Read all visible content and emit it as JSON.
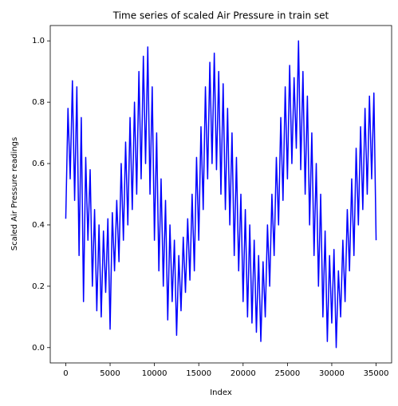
{
  "chart_data": {
    "type": "line",
    "title": "Time series of scaled Air Pressure in train set",
    "xlabel": "Index",
    "ylabel": "Scaled Air Pressure readings",
    "xlim": [
      -1750,
      36750
    ],
    "ylim": [
      -0.05,
      1.05
    ],
    "xticks": [
      0,
      5000,
      10000,
      15000,
      20000,
      25000,
      30000,
      35000
    ],
    "yticks": [
      {
        "value": 0,
        "label": "0.0"
      },
      0.2,
      0.4,
      0.6,
      0.8,
      {
        "value": 1,
        "label": "1.0"
      }
    ],
    "series": [
      {
        "color": "#0000ff",
        "x": [
          0,
          250,
          500,
          750,
          1000,
          1250,
          1500,
          1750,
          2000,
          2250,
          2500,
          2750,
          3000,
          3250,
          3500,
          3750,
          4000,
          4250,
          4500,
          4750,
          5000,
          5250,
          5500,
          5750,
          6000,
          6250,
          6500,
          6750,
          7000,
          7250,
          7500,
          7750,
          8000,
          8250,
          8500,
          8750,
          9000,
          9250,
          9500,
          9750,
          10000,
          10250,
          10500,
          10750,
          11000,
          11250,
          11500,
          11750,
          12000,
          12250,
          12500,
          12750,
          13000,
          13250,
          13500,
          13750,
          14000,
          14250,
          14500,
          14750,
          15000,
          15250,
          15500,
          15750,
          16000,
          16250,
          16500,
          16750,
          17000,
          17250,
          17500,
          17750,
          18000,
          18250,
          18500,
          18750,
          19000,
          19250,
          19500,
          19750,
          20000,
          20250,
          20500,
          20750,
          21000,
          21250,
          21500,
          21750,
          22000,
          22250,
          22500,
          22750,
          23000,
          23250,
          23500,
          23750,
          24000,
          24250,
          24500,
          24750,
          25000,
          25250,
          25500,
          25750,
          26000,
          26250,
          26500,
          26750,
          27000,
          27250,
          27500,
          27750,
          28000,
          28250,
          28500,
          28750,
          29000,
          29250,
          29500,
          29750,
          30000,
          30250,
          30500,
          30750,
          31000,
          31250,
          31500,
          31750,
          32000,
          32250,
          32500,
          32750,
          33000,
          33250,
          33500,
          33750,
          34000,
          34250,
          34500,
          34750,
          35000
        ],
        "values": [
          0.42,
          0.78,
          0.55,
          0.87,
          0.48,
          0.85,
          0.3,
          0.75,
          0.15,
          0.62,
          0.35,
          0.58,
          0.2,
          0.45,
          0.12,
          0.4,
          0.1,
          0.38,
          0.18,
          0.42,
          0.06,
          0.44,
          0.25,
          0.48,
          0.28,
          0.6,
          0.35,
          0.67,
          0.4,
          0.75,
          0.45,
          0.8,
          0.5,
          0.9,
          0.55,
          0.95,
          0.6,
          0.98,
          0.5,
          0.85,
          0.35,
          0.7,
          0.25,
          0.55,
          0.2,
          0.48,
          0.09,
          0.4,
          0.15,
          0.35,
          0.04,
          0.3,
          0.12,
          0.36,
          0.18,
          0.42,
          0.22,
          0.5,
          0.25,
          0.62,
          0.35,
          0.72,
          0.45,
          0.85,
          0.55,
          0.93,
          0.6,
          0.96,
          0.58,
          0.9,
          0.5,
          0.86,
          0.45,
          0.78,
          0.4,
          0.7,
          0.3,
          0.62,
          0.25,
          0.5,
          0.15,
          0.45,
          0.1,
          0.4,
          0.08,
          0.35,
          0.05,
          0.3,
          0.02,
          0.28,
          0.1,
          0.4,
          0.2,
          0.5,
          0.3,
          0.62,
          0.4,
          0.75,
          0.48,
          0.85,
          0.55,
          0.92,
          0.6,
          0.88,
          0.65,
          1.0,
          0.58,
          0.9,
          0.5,
          0.82,
          0.4,
          0.7,
          0.3,
          0.6,
          0.2,
          0.5,
          0.1,
          0.38,
          0.02,
          0.3,
          0.08,
          0.32,
          0.0,
          0.25,
          0.1,
          0.35,
          0.15,
          0.45,
          0.25,
          0.55,
          0.3,
          0.65,
          0.4,
          0.72,
          0.45,
          0.78,
          0.5,
          0.82,
          0.55,
          0.83,
          0.35
        ]
      }
    ]
  }
}
